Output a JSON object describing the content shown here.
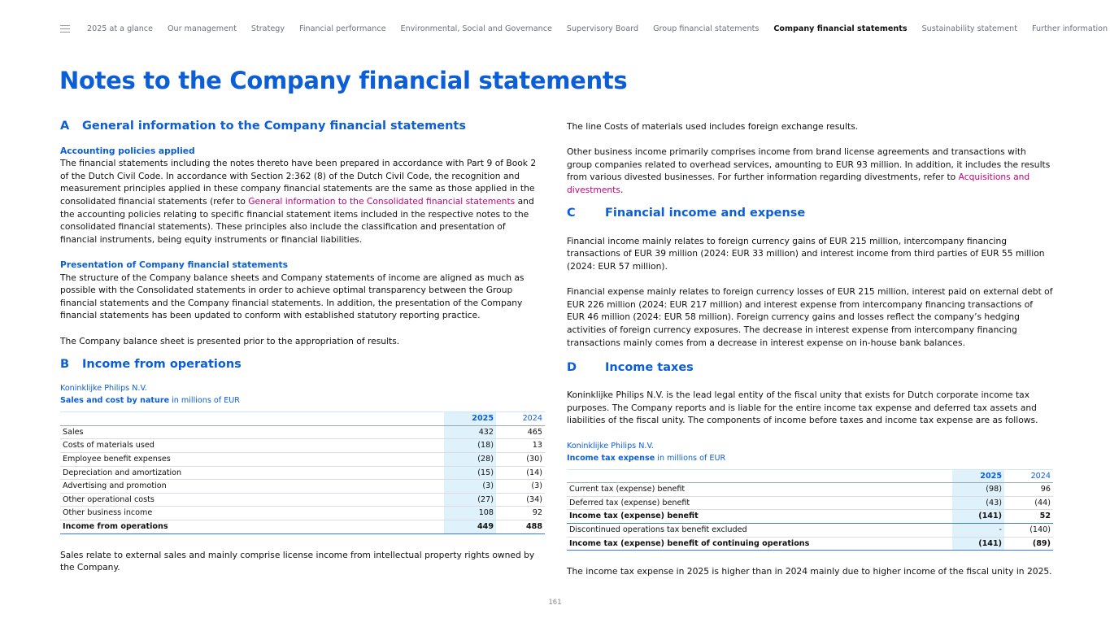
{
  "nav": {
    "items": [
      "2025 at a glance",
      "Our management",
      "Strategy",
      "Financial performance",
      "Environmental, Social and Governance",
      "Supervisory Board",
      "Group financial statements",
      "Company financial statements",
      "Sustainability statement",
      "Further information"
    ],
    "active": 7
  },
  "title": "Notes to the Company financial statements",
  "secA": {
    "letter": "A",
    "title": "General information to the Company financial statements",
    "h1": "Accounting policies applied",
    "p1a": "The financial statements including the notes thereto have been prepared in accordance with Part 9 of Book 2 of the Dutch Civil Code. In accordance with Section 2:362 (8) of the Dutch Civil Code, the recognition and measurement principles applied in these company financial statements are the same as those applied in the consolidated financial statements (refer to ",
    "p1link": "General information to the Consolidated financial statements",
    "p1b": " and the accounting policies relating to specific financial statement items included in the respective notes to the consolidated financial statements). These principles also include the classification and presentation of financial instruments, being equity instruments or financial liabilities.",
    "h2": "Presentation of Company financial statements",
    "p2": "The structure of the Company balance sheets and Company statements of income are aligned as much as possible with the Consolidated statements in order to achieve optimal transparency between the Group financial statements and the Company financial statements. In addition, the presentation of the Company financial statements has been updated to conform with established statutory reporting practice.",
    "p3": "The Company balance sheet is presented prior to the appropriation of results."
  },
  "secB": {
    "letter": "B",
    "title": "Income from operations",
    "table": {
      "entity": "Koninklijke Philips N.V.",
      "title": "Sales and cost by nature",
      "unit": " in millions of EUR",
      "headers": [
        "2025",
        "2024"
      ],
      "rows": [
        {
          "label": "Sales",
          "v2025": "432",
          "v2024": "465"
        },
        {
          "label": "Costs of materials used",
          "v2025": "(18)",
          "v2024": "13"
        },
        {
          "label": "Employee benefit expenses",
          "v2025": "(28)",
          "v2024": "(30)"
        },
        {
          "label": "Depreciation and amortization",
          "v2025": "(15)",
          "v2024": "(14)"
        },
        {
          "label": "Advertising and promotion",
          "v2025": "(3)",
          "v2024": "(3)"
        },
        {
          "label": "Other operational costs",
          "v2025": "(27)",
          "v2024": "(34)"
        },
        {
          "label": "Other business income",
          "v2025": "108",
          "v2024": "92"
        },
        {
          "label": "Income from operations",
          "v2025": "449",
          "v2024": "488"
        }
      ]
    },
    "p1": "Sales relate to external sales and mainly comprise license income from intellectual property rights owned by the Company."
  },
  "right": {
    "p1": "The line Costs of materials used includes foreign exchange results.",
    "p2a": "Other business income primarily comprises income from brand license agreements and transactions with group companies related to overhead services, amounting to EUR 93 million. In addition, it includes the results from various divested businesses. For further information regarding divestments, refer to ",
    "p2link": "Acquisitions and divestments",
    "p2b": "."
  },
  "secC": {
    "letter": "C",
    "title": "Financial income and expense",
    "p1": "Financial income mainly relates to foreign currency gains of EUR 215 million, intercompany financing transactions of EUR 39 million (2024: EUR 33 million) and interest income from third parties of EUR 55 million (2024: EUR 57 million).",
    "p2": "Financial expense mainly relates to foreign currency losses of EUR 215 million, interest paid on external debt of EUR 226 million (2024: EUR 217 million) and interest expense from intercompany financing transactions of EUR 46 million (2024: EUR 58 million). Foreign currency gains and losses reflect the company’s hedging activities of foreign currency exposures. The decrease in interest expense from intercompany financing transactions mainly comes from a decrease in interest expense on in-house bank balances."
  },
  "secD": {
    "letter": "D",
    "title": "Income taxes",
    "p1": "Koninklijke Philips N.V. is the lead legal entity of the fiscal unity that exists for Dutch corporate income tax purposes. The Company reports and is liable for the entire income tax expense and deferred tax assets and liabilities of the fiscal unity. The components of income before taxes and income tax expense are as follows.",
    "table": {
      "entity": "Koninklijke Philips N.V.",
      "title": "Income tax expense",
      "unit": " in millions of EUR",
      "headers": [
        "2025",
        "2024"
      ],
      "rows": [
        {
          "label": "Current tax (expense) benefit",
          "v2025": "(98)",
          "v2024": "96"
        },
        {
          "label": "Deferred tax (expense) benefit",
          "v2025": "(43)",
          "v2024": "(44)"
        },
        {
          "label": "Income tax (expense) benefit",
          "v2025": "(141)",
          "v2024": "52",
          "total": true
        },
        {
          "label": "Discontinued operations tax benefit excluded",
          "v2025": "-",
          "v2024": "(140)"
        },
        {
          "label": "Income tax (expense) benefit of continuing operations",
          "v2025": "(141)",
          "v2024": "(89)",
          "total": true
        }
      ]
    },
    "p2": "The income tax expense in 2025 is higher than in 2024 mainly due to higher income of the fiscal unity in 2025."
  },
  "page": "161",
  "colors": {
    "accent": "#0b5ed7",
    "link": "#c2007a",
    "highlight": "#dff2fb"
  }
}
